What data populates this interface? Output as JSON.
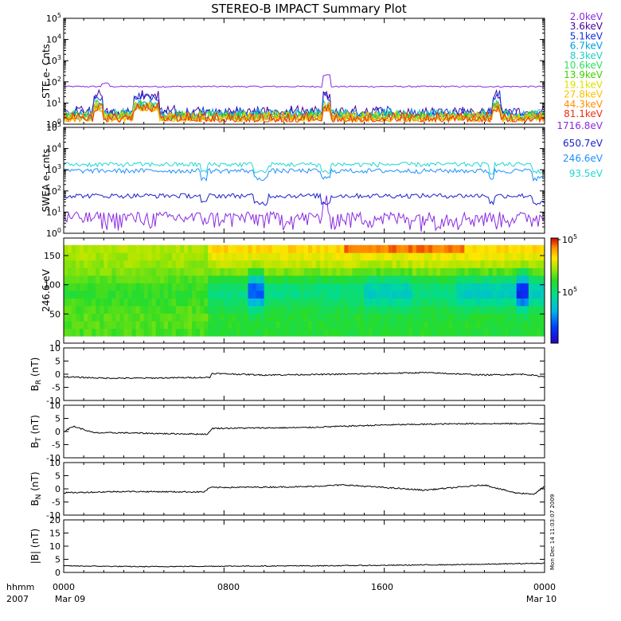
{
  "title": "STEREO-B IMPACT Summary Plot",
  "xaxis": {
    "tick_labels": [
      "0000",
      "0800",
      "1600",
      "0000"
    ],
    "tick_hours": [
      0,
      8,
      16,
      24
    ],
    "date_labels": [
      "Mar 09",
      "",
      "",
      "Mar 10"
    ],
    "corner_labels": [
      "hhmm",
      "2007"
    ],
    "xlim_hours": [
      0,
      24
    ]
  },
  "timestamp": "Mon Dec 14 11:03:07 2009",
  "chart_data": [
    {
      "type": "line",
      "ylabel": "STE e- Cnts",
      "yscale": "log",
      "ylim": [
        1,
        100000
      ],
      "yticks": [
        {
          "base": "10",
          "exp": "0"
        },
        {
          "base": "10",
          "exp": "1"
        },
        {
          "base": "10",
          "exp": "2"
        },
        {
          "base": "10",
          "exp": "3"
        },
        {
          "base": "10",
          "exp": "4"
        },
        {
          "base": "10",
          "exp": "5"
        }
      ],
      "series": [
        {
          "name": "2.0keV",
          "color": "#8a2be2",
          "level": 60
        },
        {
          "name": "3.6keV",
          "color": "#4b00a0",
          "level": 2.5
        },
        {
          "name": "5.1keV",
          "color": "#1030e0",
          "level": 2.2
        },
        {
          "name": "6.7keV",
          "color": "#00a0e0",
          "level": 1.9
        },
        {
          "name": "8.3keV",
          "color": "#20d0c0",
          "level": 1.7
        },
        {
          "name": "10.6keV",
          "color": "#30e060",
          "level": 1.6
        },
        {
          "name": "13.9keV",
          "color": "#40d000",
          "level": 1.5
        },
        {
          "name": "19.1keV",
          "color": "#e0e000",
          "level": 1.4
        },
        {
          "name": "27.8keV",
          "color": "#ffc000",
          "level": 1.35
        },
        {
          "name": "44.3keV",
          "color": "#ff9000",
          "level": 1.3
        },
        {
          "name": "81.1keV",
          "color": "#e83010",
          "level": 1.25
        }
      ]
    },
    {
      "type": "line",
      "ylabel": "SWEA e- cnts",
      "yscale": "log",
      "ylim": [
        1,
        100000
      ],
      "yticks": [
        {
          "base": "10",
          "exp": "0"
        },
        {
          "base": "10",
          "exp": "1"
        },
        {
          "base": "10",
          "exp": "2"
        },
        {
          "base": "10",
          "exp": "3"
        },
        {
          "base": "10",
          "exp": "4"
        },
        {
          "base": "10",
          "exp": "5"
        }
      ],
      "series": [
        {
          "name": "1716.8eV",
          "color": "#8a2be2",
          "level": 3
        },
        {
          "name": "650.7eV",
          "color": "#1a20c8",
          "level": 60
        },
        {
          "name": "246.6eV",
          "color": "#1e90ff",
          "level": 900
        },
        {
          "name": "93.5eV",
          "color": "#20d8d0",
          "level": 1800
        }
      ]
    },
    {
      "type": "heatmap",
      "ylabel": "246.6 eV",
      "ylim": [
        0,
        180
      ],
      "yticks": [
        "0",
        "50",
        "100",
        "150"
      ],
      "colorbar_ticks": [
        {
          "base": "10",
          "exp": "5"
        },
        {
          "base": "10",
          "exp": "5"
        }
      ]
    },
    {
      "type": "line",
      "ylabel_main": "B",
      "ylabel_sub": "R",
      "ylabel_unit": "(nT)",
      "ylim": [
        -10,
        10
      ],
      "yticks": [
        "-10",
        "-5",
        "0",
        "5",
        "10"
      ],
      "series": [
        {
          "name": "",
          "color": "#000000",
          "points": [
            [
              0,
              -1
            ],
            [
              2,
              -1.5
            ],
            [
              4,
              -1.5
            ],
            [
              7.3,
              -1.2
            ],
            [
              7.4,
              0.3
            ],
            [
              10,
              -0.3
            ],
            [
              14,
              0
            ],
            [
              18,
              0.6
            ],
            [
              21,
              -0.3
            ],
            [
              23,
              0
            ],
            [
              24,
              -1
            ]
          ]
        }
      ]
    },
    {
      "type": "line",
      "ylabel_main": "B",
      "ylabel_sub": "T",
      "ylabel_unit": "(nT)",
      "ylim": [
        -10,
        10
      ],
      "yticks": [
        "-10",
        "-5",
        "0",
        "5",
        "10"
      ],
      "series": [
        {
          "name": "",
          "color": "#000000",
          "points": [
            [
              0,
              0
            ],
            [
              0.5,
              2
            ],
            [
              1.5,
              -0.5
            ],
            [
              3,
              -0.5
            ],
            [
              5,
              -0.8
            ],
            [
              7.2,
              -1
            ],
            [
              7.4,
              1.2
            ],
            [
              12,
              1.5
            ],
            [
              16,
              2.5
            ],
            [
              20,
              3
            ],
            [
              24,
              3
            ]
          ]
        }
      ]
    },
    {
      "type": "line",
      "ylabel_main": "B",
      "ylabel_sub": "N",
      "ylabel_unit": "(nT)",
      "ylim": [
        -10,
        10
      ],
      "yticks": [
        "-10",
        "-5",
        "0",
        "5",
        "10"
      ],
      "series": [
        {
          "name": "",
          "color": "#000000",
          "points": [
            [
              0,
              -1.5
            ],
            [
              3,
              -1
            ],
            [
              7,
              -1.2
            ],
            [
              7.3,
              0.5
            ],
            [
              12,
              0.8
            ],
            [
              14,
              1.5
            ],
            [
              18,
              -0.5
            ],
            [
              21,
              1.5
            ],
            [
              22.5,
              -1.5
            ],
            [
              23.5,
              -2
            ],
            [
              24,
              1
            ]
          ]
        }
      ]
    },
    {
      "type": "line",
      "ylabel_main": "|B|",
      "ylabel_sub": "",
      "ylabel_unit": "(nT)",
      "ylim": [
        0,
        20
      ],
      "yticks": [
        "0",
        "5",
        "10",
        "15",
        "20"
      ],
      "series": [
        {
          "name": "",
          "color": "#000000",
          "points": [
            [
              0,
              2.5
            ],
            [
              4,
              2.2
            ],
            [
              8,
              2.4
            ],
            [
              12,
              2.5
            ],
            [
              16,
              2.7
            ],
            [
              20,
              3
            ],
            [
              24,
              3.5
            ]
          ]
        }
      ]
    }
  ]
}
